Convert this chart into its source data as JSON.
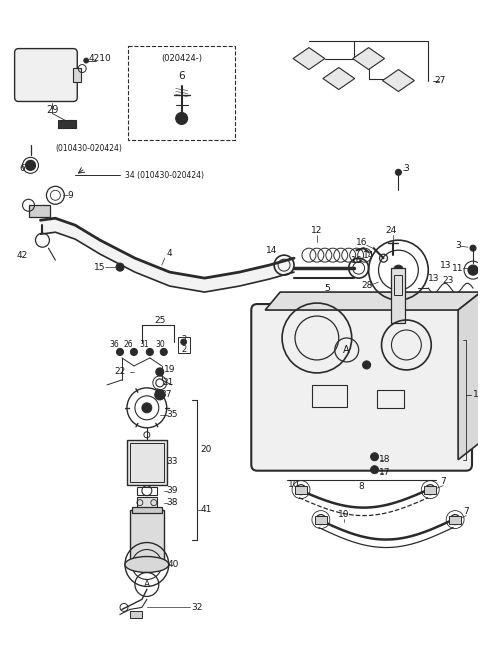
{
  "bg_color": "#ffffff",
  "line_color": "#2a2a2a",
  "text_color": "#1a1a1a",
  "fig_width": 4.8,
  "fig_height": 6.56,
  "dpi": 100
}
